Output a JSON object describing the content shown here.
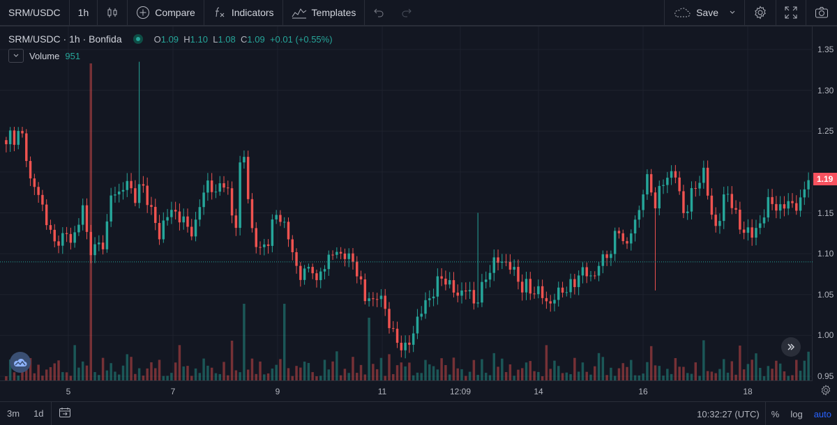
{
  "toolbar": {
    "symbol": "SRM/USDC",
    "interval": "1h",
    "compare_label": "Compare",
    "indicators_label": "Indicators",
    "templates_label": "Templates",
    "save_label": "Save"
  },
  "legend": {
    "title": "SRM/USDC · 1h · Bonfida",
    "o_label": "O",
    "o": "1.09",
    "h_label": "H",
    "h": "1.10",
    "l_label": "L",
    "l": "1.08",
    "c_label": "C",
    "c": "1.09",
    "change": "+0.01 (+0.55%)",
    "volume_label": "Volume",
    "volume_value": "951"
  },
  "last_price_label": "1.19",
  "bottom": {
    "range_3m": "3m",
    "range_1d": "1d",
    "time": "10:32:27 (UTC)",
    "percent": "%",
    "log": "log",
    "auto": "auto"
  },
  "colors": {
    "up": "#26a69a",
    "down": "#ef5350",
    "background": "#131722",
    "grid": "#1e222d",
    "last_price": "#f7525f"
  },
  "chart_data": {
    "type": "candlestick",
    "yticks": [
      "1.35",
      "1.30",
      "1.25",
      "1.20",
      "1.15",
      "1.10",
      "1.05",
      "1.00",
      "0.95"
    ],
    "ylim": [
      0.95,
      1.35
    ],
    "xticks": [
      "5",
      "7",
      "9",
      "11",
      "12:09",
      "14",
      "16",
      "18"
    ],
    "last_close": 1.19,
    "reference_price": 1.09,
    "price_path": [
      [
        1.23,
        1.25,
        1.24
      ],
      [
        1.25,
        1.23
      ],
      [
        1.19,
        1.18,
        1.17
      ],
      [
        1.15,
        1.13,
        1.11,
        1.12
      ],
      [
        1.12,
        1.12,
        1.12
      ],
      [
        1.13,
        1.16,
        1.12
      ],
      [
        1.1,
        1.11,
        1.11
      ],
      [
        1.13,
        1.17,
        1.18
      ],
      [
        1.17,
        1.19,
        1.18
      ],
      [
        1.17,
        1.18,
        1.18
      ],
      [
        1.16,
        1.14,
        1.12
      ],
      [
        1.14,
        1.15,
        1.15
      ],
      [
        1.15,
        1.14,
        1.13
      ],
      [
        1.13,
        1.14
      ],
      [
        1.17,
        1.19,
        1.18
      ],
      [
        1.17,
        1.19,
        1.19
      ],
      [
        1.15,
        1.13
      ],
      [
        1.21,
        1.22
      ],
      [
        1.14,
        1.12
      ],
      [
        1.1,
        1.11
      ],
      [
        1.12,
        1.14,
        1.15
      ],
      [
        1.14,
        1.12,
        1.1
      ],
      [
        1.08,
        1.07,
        1.08
      ],
      [
        1.09,
        1.06,
        1.08
      ],
      [
        1.09,
        1.1,
        1.1,
        1.1
      ],
      [
        1.1,
        1.09,
        1.09
      ],
      [
        1.07,
        1.04,
        1.05
      ],
      [
        1.04,
        1.05,
        1.04
      ],
      [
        1.02,
        1.0,
        0.99
      ],
      [
        0.99,
        0.98,
        1.0
      ],
      [
        1.02,
        1.03,
        1.04,
        1.05
      ],
      [
        1.06,
        1.07,
        1.07
      ],
      [
        1.06,
        1.05,
        1.05
      ],
      [
        1.06,
        1.05,
        1.04
      ],
      [
        1.05,
        1.06,
        1.08,
        1.09
      ],
      [
        1.09,
        1.09,
        1.09
      ],
      [
        1.08,
        1.07,
        1.06,
        1.06
      ],
      [
        1.05,
        1.06,
        1.05
      ],
      [
        1.04,
        1.04,
        1.05
      ],
      [
        1.05,
        1.06,
        1.06,
        1.06
      ],
      [
        1.08,
        1.08
      ],
      [
        1.07,
        1.07
      ],
      [
        1.09,
        1.09
      ],
      [
        1.1,
        1.11,
        1.13,
        1.12
      ],
      [
        1.11,
        1.13,
        1.14,
        1.17
      ],
      [
        1.19,
        1.18
      ],
      [
        1.16,
        1.18
      ],
      [
        1.19,
        1.2,
        1.2
      ],
      [
        1.17,
        1.15,
        1.16
      ],
      [
        1.18,
        1.19,
        1.2
      ],
      [
        1.17,
        1.14,
        1.13
      ],
      [
        1.16,
        1.18
      ],
      [
        1.16,
        1.14,
        1.13
      ],
      [
        1.13,
        1.12,
        1.13
      ],
      [
        1.14,
        1.15,
        1.17
      ],
      [
        1.16,
        1.15,
        1.16,
        1.17
      ],
      [
        1.15,
        1.16,
        1.18,
        1.19
      ]
    ]
  }
}
